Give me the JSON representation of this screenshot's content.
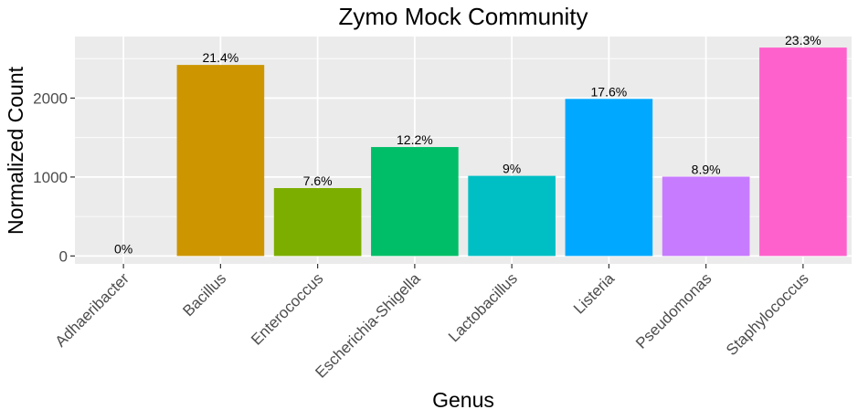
{
  "chart_data": {
    "type": "bar",
    "title": "Zymo Mock Community",
    "xlabel": "Genus",
    "ylabel": "Normalized Count",
    "categories": [
      "Adhaeribacter",
      "Bacillus",
      "Enterococcus",
      "Escherichia-Shigella",
      "Lactobacillus",
      "Listeria",
      "Pseudomonas",
      "Staphylococcus"
    ],
    "values": [
      0,
      2420,
      860,
      1380,
      1015,
      1990,
      1005,
      2640
    ],
    "data_labels": [
      "0%",
      "21.4%",
      "7.6%",
      "12.2%",
      "9%",
      "17.6%",
      "8.9%",
      "23.3%"
    ],
    "colors": [
      "#F8766D",
      "#CD9600",
      "#7CAE00",
      "#00BE67",
      "#00BFC4",
      "#00A9FF",
      "#C77CFF",
      "#FF61CC"
    ],
    "ylim": [
      -100,
      2780
    ],
    "yticks": [
      0,
      1000,
      2000
    ],
    "ytick_labels": [
      "0",
      "1000",
      "2000"
    ],
    "grid": true,
    "legend": "none",
    "panel_background": "#EBEBEB"
  }
}
